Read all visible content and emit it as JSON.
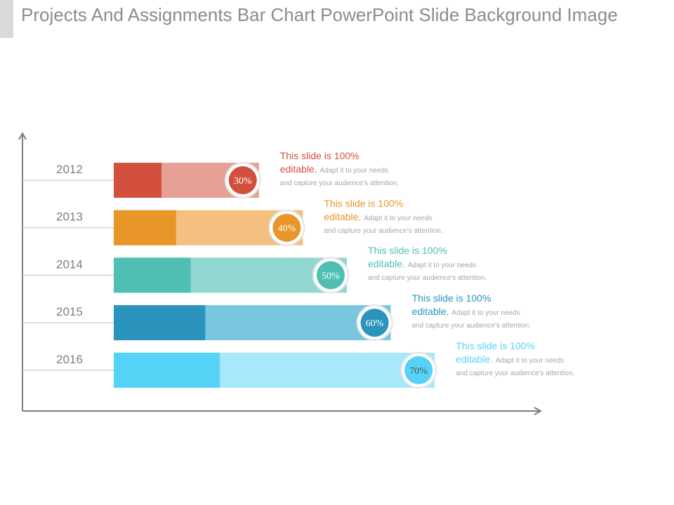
{
  "slide": {
    "title": "Projects And Assignments Bar Chart PowerPoint Slide Background Image"
  },
  "chart_data": {
    "type": "bar",
    "orientation": "horizontal",
    "categories": [
      "2012",
      "2013",
      "2014",
      "2015",
      "2016"
    ],
    "values": [
      30,
      40,
      50,
      60,
      70
    ],
    "value_labels": [
      "30%",
      "40%",
      "50%",
      "60%",
      "70%"
    ],
    "colors": [
      {
        "dark": "#d4503e",
        "light": "#e6a095"
      },
      {
        "dark": "#e8962a",
        "light": "#f4c07f"
      },
      {
        "dark": "#4fbfb4",
        "light": "#91d7d1"
      },
      {
        "dark": "#2b94bd",
        "light": "#79c6e0"
      },
      {
        "dark": "#55d3f6",
        "light": "#a8e8fb"
      }
    ],
    "label_colors": [
      "#d4503e",
      "#e8962a",
      "#4fbfb4",
      "#2b94bd",
      "#55d3f6"
    ],
    "callouts": [
      {
        "lead1": "This slide is 100%",
        "lead2": "editable.",
        "body": "Adapt it to your needs and capture your audience's attention."
      },
      {
        "lead1": "This slide is 100%",
        "lead2": "editable.",
        "body": "Adapt it to your needs and capture your audience's attention."
      },
      {
        "lead1": "This slide is 100%",
        "lead2": "editable.",
        "body": "Adapt it to your needs and capture your audience's attention."
      },
      {
        "lead1": "This slide is 100%",
        "lead2": "editable.",
        "body": "Adapt it to your needs and capture your audience's attention."
      },
      {
        "lead1": "This slide is 100%",
        "lead2": "editable.",
        "body": "Adapt it to your needs and capture your audience's attention."
      }
    ],
    "axis_color": "#7f7f7f",
    "category_label_color": "#7f7f7f",
    "grid": false
  }
}
